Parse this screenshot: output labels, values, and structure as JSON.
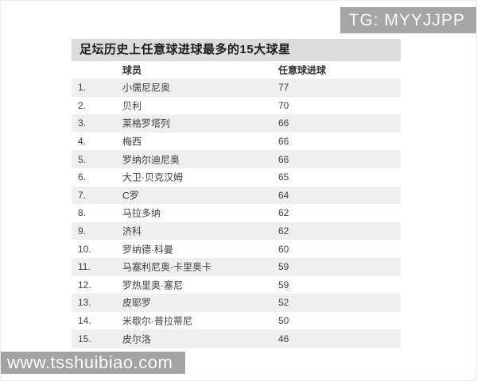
{
  "page": {
    "badge": "TG: MYYJJPP",
    "watermark": "www.tsshuibiao.com"
  },
  "colors": {
    "badge_bg": "#a6a6a6",
    "title_bar_bg": "#dcdcdc",
    "stripe_row_bg": "#efefef",
    "watermark_bg": "#a3a3a3",
    "text": "#404040"
  },
  "chart_data": {
    "type": "table",
    "title": "足坛历史上任意球进球最多的15大球星",
    "columns": [
      "球员",
      "任意球进球"
    ],
    "rows": [
      {
        "rank": "1.",
        "player": "小儒尼尼奥",
        "goals": "77"
      },
      {
        "rank": "2.",
        "player": "贝利",
        "goals": "70"
      },
      {
        "rank": "3.",
        "player": "莱格罗塔列",
        "goals": "66"
      },
      {
        "rank": "4.",
        "player": "梅西",
        "goals": "66"
      },
      {
        "rank": "5.",
        "player": "罗纳尔迪尼奥",
        "goals": "66"
      },
      {
        "rank": "6.",
        "player": "大卫·贝克汉姆",
        "goals": "65"
      },
      {
        "rank": "7.",
        "player": "C罗",
        "goals": "64"
      },
      {
        "rank": "8.",
        "player": "马拉多纳",
        "goals": "62"
      },
      {
        "rank": "9.",
        "player": "济科",
        "goals": "62"
      },
      {
        "rank": "10.",
        "player": "罗纳德·科曼",
        "goals": "60"
      },
      {
        "rank": "11.",
        "player": "马塞利尼奥·卡里奥卡",
        "goals": "59"
      },
      {
        "rank": "12.",
        "player": "罗热里奥·塞尼",
        "goals": "59"
      },
      {
        "rank": "13.",
        "player": "皮耶罗",
        "goals": "52"
      },
      {
        "rank": "14.",
        "player": "米歇尔·普拉蒂尼",
        "goals": "50"
      },
      {
        "rank": "15.",
        "player": "皮尔洛",
        "goals": "46"
      }
    ]
  }
}
